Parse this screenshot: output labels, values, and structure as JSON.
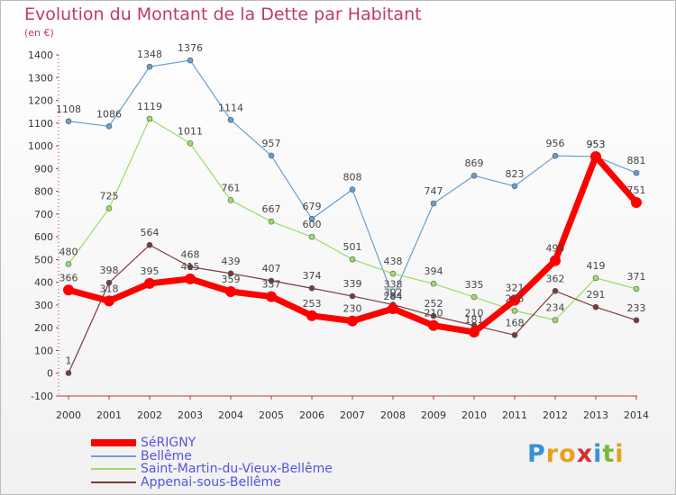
{
  "header": {
    "title": "Evolution du Montant de la Dette par Habitant",
    "unit": "(en €)"
  },
  "brand": {
    "letters": [
      "P",
      "r",
      "o",
      "x",
      "i",
      "t",
      "i"
    ],
    "colors": [
      "#3a8fd9",
      "#e8a020",
      "#e8a020",
      "#d03030",
      "#3a8fd9",
      "#7ab83a",
      "#e8a020"
    ]
  },
  "chart_data": {
    "type": "line",
    "title": "Evolution du Montant de la Dette par Habitant",
    "ylabel": "(en €)",
    "xlabel": "",
    "ylim": [
      -100,
      1400
    ],
    "grid": false,
    "legend_position": "bottom-left",
    "x": [
      "2000",
      "2001",
      "2002",
      "2003",
      "2004",
      "2005",
      "2006",
      "2007",
      "2008",
      "2009",
      "2010",
      "2011",
      "2012",
      "2013",
      "2014"
    ],
    "y_ticks": [
      "-100",
      "0",
      "100",
      "200",
      "300",
      "400",
      "500",
      "600",
      "700",
      "800",
      "900",
      "1000",
      "1100",
      "1200",
      "1300",
      "1400"
    ],
    "series": [
      {
        "name": "SéRIGNY",
        "color": "#ff0000",
        "values": [
          366,
          318,
          395,
          415,
          359,
          337,
          253,
          230,
          284,
          210,
          181,
          321,
          495,
          953,
          751
        ]
      },
      {
        "name": "Bellême",
        "color": "#6a9ecf",
        "values": [
          1108,
          1086,
          1348,
          1376,
          1114,
          957,
          679,
          808,
          338,
          747,
          869,
          823,
          956,
          953,
          881
        ]
      },
      {
        "name": "Saint-Martin-du-Vieux-Bellême",
        "color": "#99dd66",
        "values": [
          480,
          725,
          1119,
          1011,
          761,
          667,
          600,
          501,
          438,
          394,
          335,
          275,
          234,
          419,
          371
        ]
      },
      {
        "name": "Appenai-sous-Bellême",
        "color": "#7a3a3a",
        "values": [
          1,
          398,
          564,
          468,
          439,
          407,
          374,
          339,
          302,
          252,
          210,
          168,
          362,
          291,
          233
        ]
      }
    ]
  }
}
